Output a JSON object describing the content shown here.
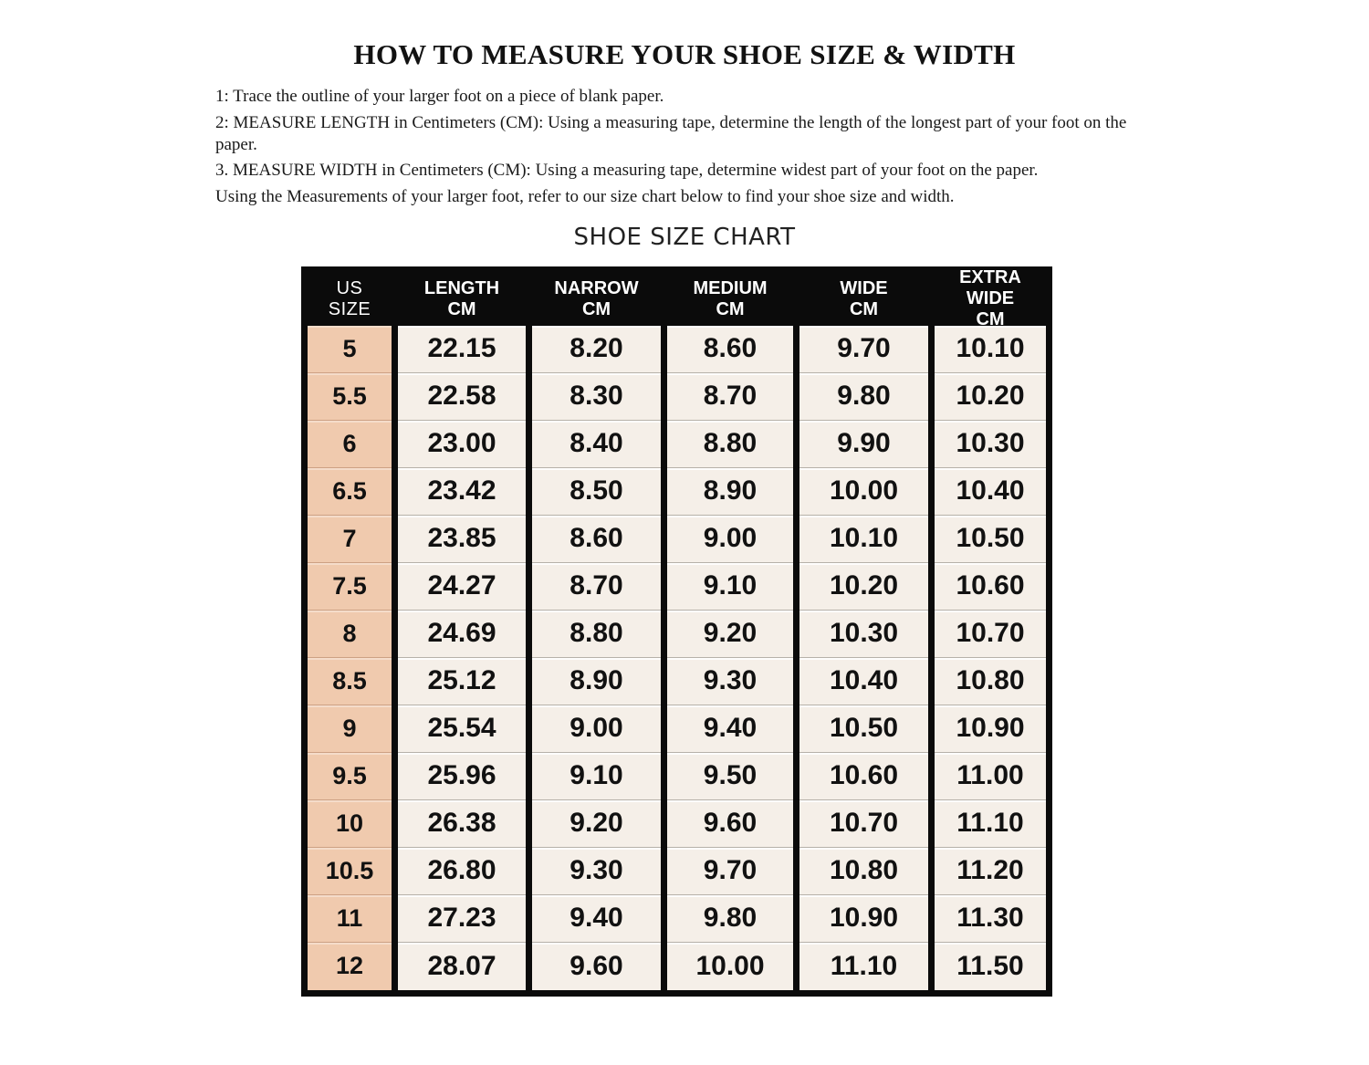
{
  "page": {
    "title": "HOW TO MEASURE YOUR SHOE SIZE & WIDTH",
    "chart_heading": "SHOE SIZE CHART"
  },
  "instructions": {
    "step1": "1: Trace the outline of your larger foot on a piece of blank paper.",
    "step2": "2: MEASURE LENGTH in Centimeters (CM): Using a measuring tape, determine the length of the longest part of your foot on the paper.",
    "step3": "3. MEASURE WIDTH in Centimeters (CM): Using a measuring tape, determine widest part of your foot on the paper.",
    "step4": "Using the Measurements of your larger foot, refer to our size chart below to find your shoe size and width."
  },
  "table": {
    "columns": [
      "US\nSIZE",
      "LENGTH\nCM",
      "NARROW\nCM",
      "MEDIUM\nCM",
      "WIDE\nCM",
      "EXTRA WIDE\nCM"
    ],
    "rows": [
      [
        "5",
        "22.15",
        "8.20",
        "8.60",
        "9.70",
        "10.10"
      ],
      [
        "5.5",
        "22.58",
        "8.30",
        "8.70",
        "9.80",
        "10.20"
      ],
      [
        "6",
        "23.00",
        "8.40",
        "8.80",
        "9.90",
        "10.30"
      ],
      [
        "6.5",
        "23.42",
        "8.50",
        "8.90",
        "10.00",
        "10.40"
      ],
      [
        "7",
        "23.85",
        "8.60",
        "9.00",
        "10.10",
        "10.50"
      ],
      [
        "7.5",
        "24.27",
        "8.70",
        "9.10",
        "10.20",
        "10.60"
      ],
      [
        "8",
        "24.69",
        "8.80",
        "9.20",
        "10.30",
        "10.70"
      ],
      [
        "8.5",
        "25.12",
        "8.90",
        "9.30",
        "10.40",
        "10.80"
      ],
      [
        "9",
        "25.54",
        "9.00",
        "9.40",
        "10.50",
        "10.90"
      ],
      [
        "9.5",
        "25.96",
        "9.10",
        "9.50",
        "10.60",
        "11.00"
      ],
      [
        "10",
        "26.38",
        "9.20",
        "9.60",
        "10.70",
        "11.10"
      ],
      [
        "10.5",
        "26.80",
        "9.30",
        "9.70",
        "10.80",
        "11.20"
      ],
      [
        "11",
        "27.23",
        "9.40",
        "9.80",
        "10.90",
        "11.30"
      ],
      [
        "12",
        "28.07",
        "9.60",
        "10.00",
        "11.10",
        "11.50"
      ]
    ]
  },
  "colors": {
    "border": "#0b0b0b",
    "header_bg": "#0b0b0b",
    "header_text": "#ffffff",
    "size_col_bg": "#f0caae",
    "cell_bg": "#f5efe8",
    "text": "#161616"
  }
}
